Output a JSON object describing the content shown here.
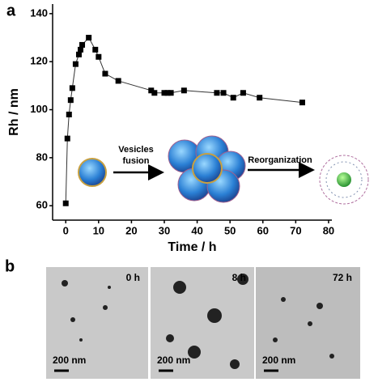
{
  "chart_data": {
    "type": "line",
    "x_label": "Time / h",
    "y_label": "Rh / nm",
    "x": [
      0,
      0.5,
      1,
      1.5,
      2,
      3,
      4,
      4.5,
      5,
      7,
      9,
      10,
      12,
      16,
      26,
      27,
      30,
      31,
      32,
      36,
      46,
      48,
      51,
      54,
      59,
      72
    ],
    "values": [
      61,
      88,
      98,
      104,
      109,
      119,
      123,
      125,
      127,
      130,
      125,
      122,
      115,
      112,
      108,
      107,
      107,
      107,
      107,
      108,
      107,
      107,
      105,
      107,
      105,
      103
    ],
    "color": "#000000",
    "xlim": [
      -4,
      81
    ],
    "xticks": [
      0,
      10,
      20,
      30,
      40,
      50,
      60,
      70,
      80
    ],
    "ylim": [
      54,
      144
    ],
    "yticks": [
      60,
      80,
      100,
      120,
      140
    ]
  },
  "panel_labels": [
    "a",
    "b"
  ],
  "scheme": {
    "step1_lines": [
      "Vesicles",
      "fusion"
    ],
    "step2": "Reorganization"
  },
  "tem_images": [
    {
      "time": "0 h",
      "scale": "200 nm"
    },
    {
      "time": "8 h",
      "scale": "200 nm"
    },
    {
      "time": "72 h",
      "scale": "200 nm"
    }
  ]
}
